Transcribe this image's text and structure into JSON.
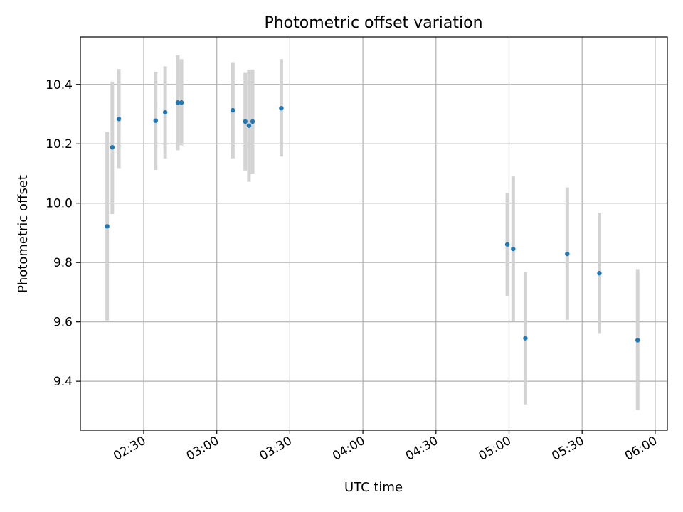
{
  "chart_data": {
    "type": "scatter",
    "title": "Photometric offset variation",
    "xlabel": "UTC time",
    "ylabel": "Photometric offset",
    "xlim_minutes": [
      124,
      365
    ],
    "ylim": [
      9.235,
      10.56
    ],
    "grid": true,
    "x_ticks": [
      {
        "minutes": 150,
        "label": "02:30"
      },
      {
        "minutes": 180,
        "label": "03:00"
      },
      {
        "minutes": 210,
        "label": "03:30"
      },
      {
        "minutes": 240,
        "label": "04:00"
      },
      {
        "minutes": 270,
        "label": "04:30"
      },
      {
        "minutes": 300,
        "label": "05:00"
      },
      {
        "minutes": 330,
        "label": "05:30"
      },
      {
        "minutes": 360,
        "label": "06:00"
      }
    ],
    "y_ticks": [
      {
        "value": 9.4,
        "label": "9.4"
      },
      {
        "value": 9.6,
        "label": "9.6"
      },
      {
        "value": 9.8,
        "label": "9.8"
      },
      {
        "value": 10.0,
        "label": "10.0"
      },
      {
        "value": 10.2,
        "label": "10.2"
      },
      {
        "value": 10.4,
        "label": "10.4"
      }
    ],
    "marker_color": "#1f77b4",
    "errorbar_color": "#d3d3d3",
    "points": [
      {
        "x": 135.0,
        "y": 9.922,
        "err_low": 9.605,
        "err_high": 10.24
      },
      {
        "x": 137.1,
        "y": 10.188,
        "err_low": 9.963,
        "err_high": 10.41
      },
      {
        "x": 139.8,
        "y": 10.284,
        "err_low": 10.118,
        "err_high": 10.452
      },
      {
        "x": 154.9,
        "y": 10.278,
        "err_low": 10.112,
        "err_high": 10.443
      },
      {
        "x": 158.8,
        "y": 10.306,
        "err_low": 10.151,
        "err_high": 10.461
      },
      {
        "x": 164.0,
        "y": 10.339,
        "err_low": 10.178,
        "err_high": 10.498
      },
      {
        "x": 165.5,
        "y": 10.339,
        "err_low": 10.195,
        "err_high": 10.485
      },
      {
        "x": 186.6,
        "y": 10.313,
        "err_low": 10.151,
        "err_high": 10.475
      },
      {
        "x": 191.7,
        "y": 10.275,
        "err_low": 10.11,
        "err_high": 10.441
      },
      {
        "x": 193.2,
        "y": 10.261,
        "err_low": 10.072,
        "err_high": 10.45
      },
      {
        "x": 194.7,
        "y": 10.275,
        "err_low": 10.1,
        "err_high": 10.45
      },
      {
        "x": 206.5,
        "y": 10.32,
        "err_low": 10.157,
        "err_high": 10.485
      },
      {
        "x": 299.3,
        "y": 9.861,
        "err_low": 9.688,
        "err_high": 10.034
      },
      {
        "x": 301.7,
        "y": 9.846,
        "err_low": 9.602,
        "err_high": 10.09
      },
      {
        "x": 306.7,
        "y": 9.545,
        "err_low": 9.322,
        "err_high": 9.768
      },
      {
        "x": 323.9,
        "y": 9.829,
        "err_low": 9.607,
        "err_high": 10.053
      },
      {
        "x": 337.1,
        "y": 9.764,
        "err_low": 9.562,
        "err_high": 9.966
      },
      {
        "x": 352.8,
        "y": 9.538,
        "err_low": 9.302,
        "err_high": 9.778
      }
    ]
  }
}
